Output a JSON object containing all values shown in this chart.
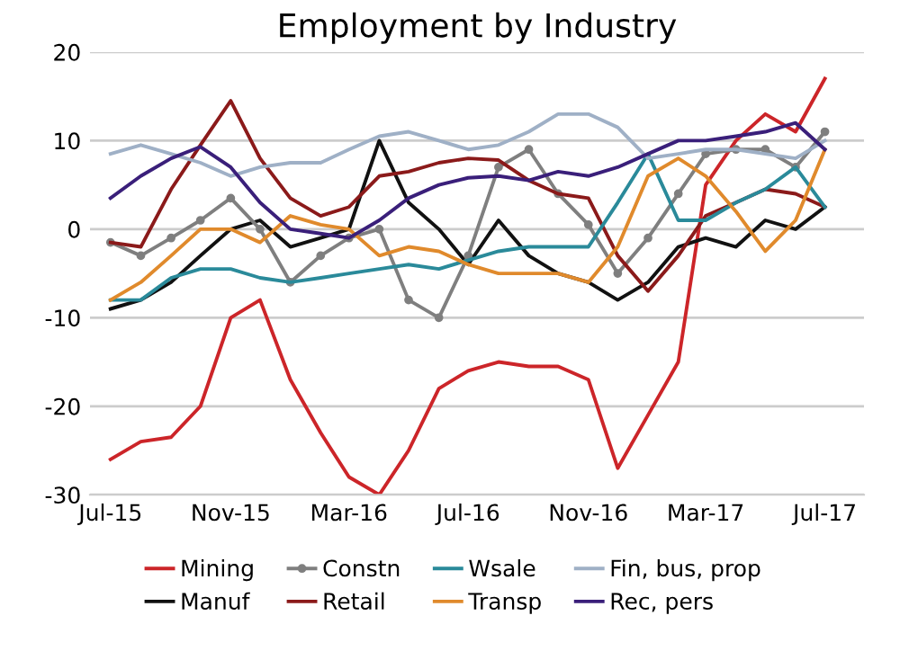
{
  "chart_data": {
    "type": "line",
    "title": "Employment by Industry",
    "x": [
      "2015-07",
      "2015-08",
      "2015-09",
      "2015-10",
      "2015-11",
      "2015-12",
      "2016-01",
      "2016-02",
      "2016-03",
      "2016-04",
      "2016-05",
      "2016-06",
      "2016-07",
      "2016-08",
      "2016-09",
      "2016-10",
      "2016-11",
      "2016-12",
      "2017-01",
      "2017-02",
      "2017-03",
      "2017-04",
      "2017-05",
      "2017-06",
      "2017-07"
    ],
    "series": [
      {
        "name": "Mining",
        "color": "#cc2529",
        "values": [
          -26,
          -24,
          -23.5,
          -20,
          -10,
          -8,
          -17,
          -23,
          -28,
          -30,
          -25,
          -18,
          -16,
          -15,
          -15.5,
          -15.5,
          -17,
          -27,
          -21,
          -15,
          5,
          10,
          13,
          11,
          17
        ]
      },
      {
        "name": "Manuf",
        "color": "#111111",
        "values": [
          -9,
          -8,
          -6,
          -3,
          0,
          1,
          -2,
          -1,
          0,
          10,
          3,
          0,
          -4,
          1,
          -3,
          -5,
          -6,
          -8,
          -6,
          -2,
          -1,
          -2,
          1,
          0,
          2.5
        ]
      },
      {
        "name": "Constn",
        "color": "#7f7f7f",
        "marker": "circle",
        "values": [
          -1.5,
          -3,
          -1,
          1,
          3.5,
          0,
          -6,
          -3,
          -1,
          0,
          -8,
          -10,
          -3,
          7,
          9,
          4,
          0.5,
          -5,
          -1,
          4,
          8.5,
          9,
          9,
          7,
          11
        ]
      },
      {
        "name": "Retail",
        "color": "#8b1a1a",
        "values": [
          -1.5,
          -2,
          4.5,
          9.5,
          14.5,
          8,
          3.5,
          1.5,
          2.5,
          6,
          6.5,
          7.5,
          8,
          7.8,
          5.5,
          4,
          3.5,
          -3,
          -7,
          -3,
          1.5,
          3,
          4.5,
          4,
          2.5
        ]
      },
      {
        "name": "Wsale",
        "color": "#2a8a9a",
        "values": [
          -8,
          -8,
          -5.5,
          -4.5,
          -4.5,
          -5.5,
          -6,
          -5.5,
          -5,
          -4.5,
          -4,
          -4.5,
          -3.5,
          -2.5,
          -2,
          -2,
          -2,
          3,
          8.5,
          1,
          1,
          3,
          4.5,
          7,
          2.5
        ]
      },
      {
        "name": "Transp",
        "color": "#e08a2c",
        "values": [
          -8,
          -6,
          -3,
          0,
          0,
          -1.5,
          1.5,
          0.5,
          0,
          -3,
          -2,
          -2.5,
          -4,
          -5,
          -5,
          -5,
          -6,
          -2,
          6,
          8,
          6,
          2,
          -2.5,
          1,
          9
        ]
      },
      {
        "name": "Fin, bus, prop",
        "color": "#9fb0c6",
        "values": [
          8.5,
          9.5,
          8.5,
          7.5,
          6,
          7,
          7.5,
          7.5,
          9,
          10.5,
          11,
          10,
          9,
          9.5,
          11,
          13,
          13,
          11.5,
          8,
          8.5,
          9,
          9,
          8.5,
          8,
          10
        ]
      },
      {
        "name": "Rec, pers",
        "color": "#3a1f7a",
        "values": [
          3.5,
          6,
          8,
          9.3,
          7,
          3,
          0,
          -0.5,
          -1,
          1,
          3.5,
          5,
          5.8,
          6,
          5.5,
          6.5,
          6,
          7,
          8.5,
          10,
          10,
          10.5,
          11,
          12,
          9
        ]
      }
    ],
    "xlim": [
      "2015-06-10",
      "2017-08-10"
    ],
    "xticks": [
      {
        "value": "2015-07",
        "label": "Jul-15"
      },
      {
        "value": "2015-11",
        "label": "Nov-15"
      },
      {
        "value": "2016-03",
        "label": "Mar-16"
      },
      {
        "value": "2016-07",
        "label": "Jul-16"
      },
      {
        "value": "2016-11",
        "label": "Nov-16"
      },
      {
        "value": "2017-03",
        "label": "Mar-17"
      },
      {
        "value": "2017-07",
        "label": "Jul-17"
      }
    ],
    "ylim": [
      -30,
      20
    ],
    "yticks": [
      -30,
      -20,
      -10,
      0,
      10,
      20
    ],
    "grid": "y",
    "legend": "bottom",
    "line_style": "solid"
  }
}
